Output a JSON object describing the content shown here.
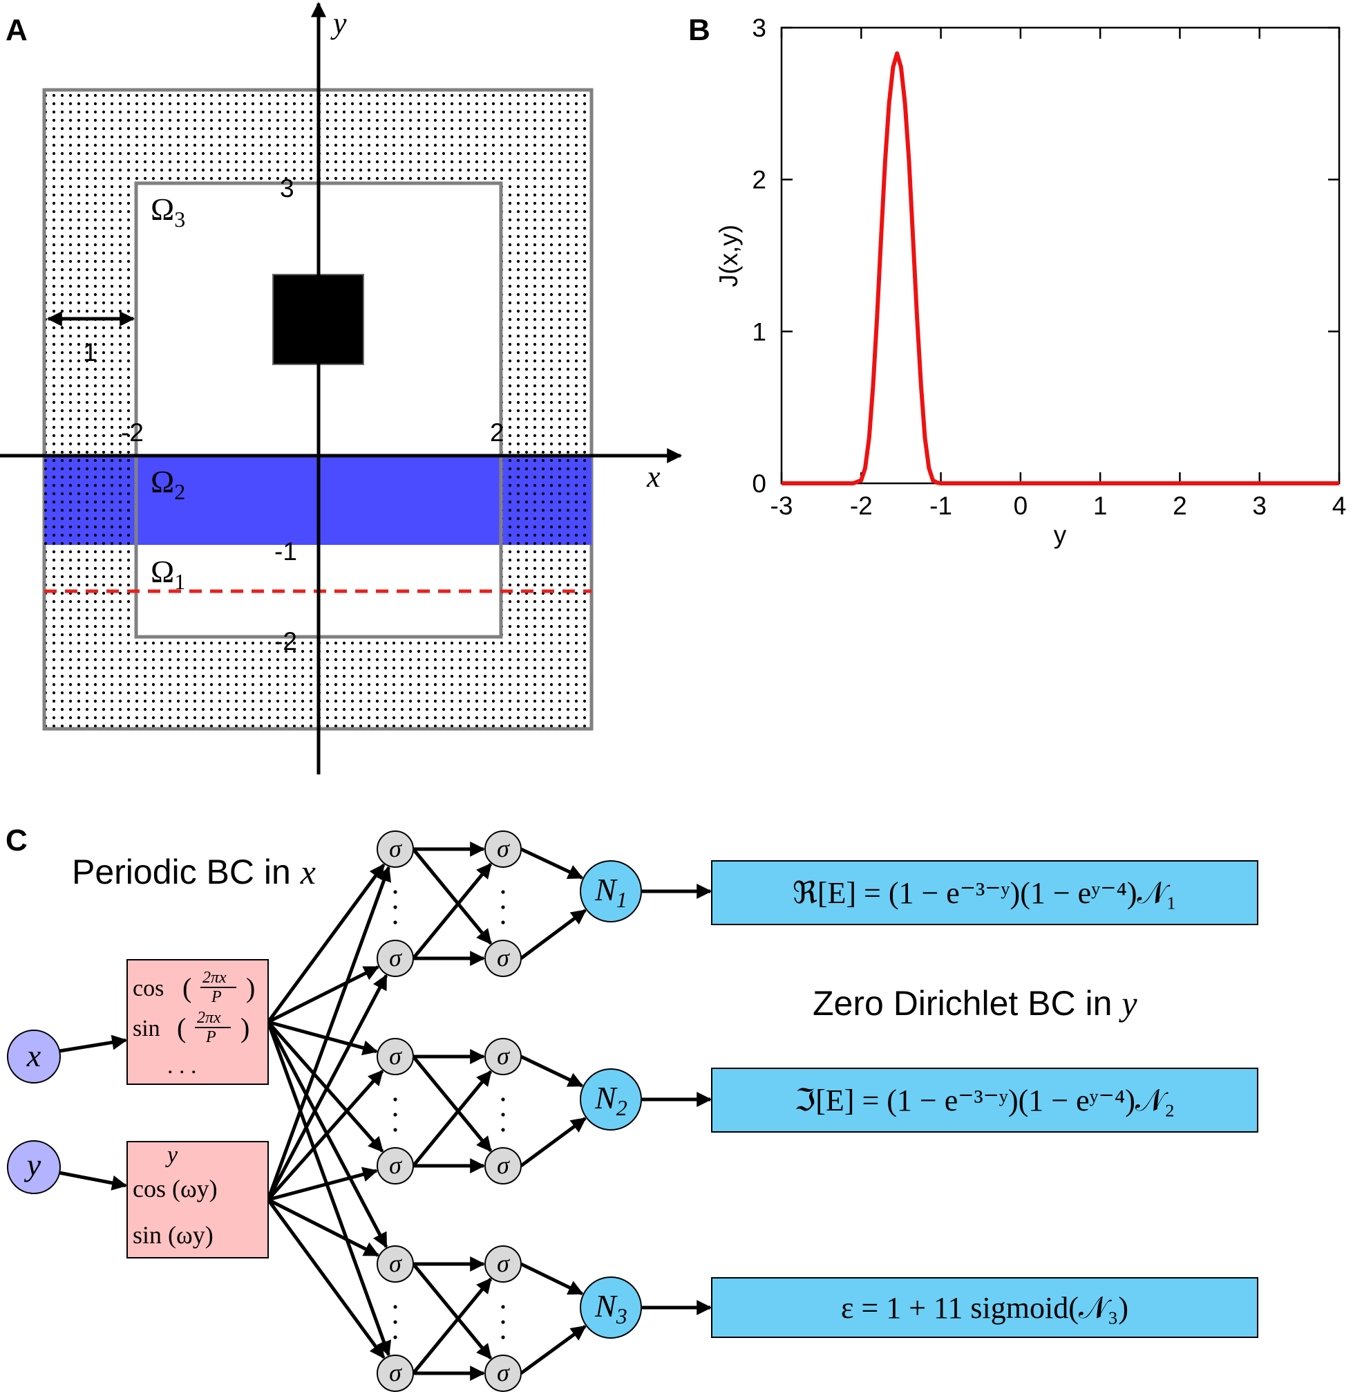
{
  "panels": {
    "a": "A",
    "b": "B",
    "c": "C"
  },
  "panel_a": {
    "axis_x": "x",
    "axis_y": "y",
    "ticks": {
      "y_top": "3",
      "y_m1": "-1",
      "y_m2": "-2",
      "x_m2": "-2",
      "x_p2": "2"
    },
    "width_label": "1",
    "omega_3": "Ω",
    "omega_3_sub": "3",
    "omega_2": "Ω",
    "omega_2_sub": "2",
    "omega_1": "Ω",
    "omega_1_sub": "1",
    "colors": {
      "band": "#4b4bff",
      "source": "#000000",
      "pml_border": "#808080",
      "dashed": "#e8201c"
    }
  },
  "panel_c": {
    "periodic_label": "Periodic BC in ",
    "periodic_var": "x",
    "dirichlet_label": "Zero Dirichlet BC in ",
    "dirichlet_var": "y",
    "input_x": "x",
    "input_y": "y",
    "feat_x": [
      "cos (2πx/P)",
      "sin (2πx/P)",
      ". . ."
    ],
    "feat_y": [
      "y",
      "cos (ωy)",
      "sin (ωy)"
    ],
    "frac_num": "2πx",
    "frac_den": "P",
    "neuron": "σ",
    "n1": "N",
    "n1_sub": "1",
    "n2": "N",
    "n2_sub": "2",
    "n3": "N",
    "n3_sub": "3",
    "out1": "ℜ[E] = (1 − e⁻³⁻ʸ)(1 − eʸ⁻⁴)𝒩₁",
    "out2": "ℑ[E] = (1 − e⁻³⁻ʸ)(1 − eʸ⁻⁴)𝒩₂",
    "out3": "ε = 1 + 11 sigmoid(𝒩₃)",
    "colors": {
      "input": "#b3b3ff",
      "feature": "#ffc2c2",
      "sigma": "#d9d9d9",
      "nn_out": "#6dcff6"
    }
  },
  "chart_data": {
    "type": "line",
    "title": "",
    "xlabel": "y",
    "ylabel": "J(x,y)",
    "xlim": [
      -3,
      4
    ],
    "ylim": [
      0,
      3
    ],
    "xticks": [
      "-3",
      "-2",
      "-1",
      "0",
      "1",
      "2",
      "3",
      "4"
    ],
    "yticks": [
      "0",
      "1",
      "2",
      "3"
    ],
    "line_color": "#ee1111",
    "series": [
      {
        "x": [
          -3,
          -2.5,
          -2.1,
          -2.0,
          -1.95,
          -1.9,
          -1.85,
          -1.8,
          -1.75,
          -1.7,
          -1.65,
          -1.6,
          -1.55,
          -1.5,
          -1.45,
          -1.4,
          -1.35,
          -1.3,
          -1.25,
          -1.2,
          -1.15,
          -1.1,
          -1.05,
          -1.0,
          -0.9,
          0,
          1,
          2,
          3,
          4
        ],
        "y": [
          0,
          0,
          0,
          0.02,
          0.1,
          0.3,
          0.65,
          1.1,
          1.62,
          2.12,
          2.5,
          2.74,
          2.83,
          2.74,
          2.5,
          2.12,
          1.62,
          1.1,
          0.65,
          0.3,
          0.1,
          0.02,
          0.005,
          0,
          0,
          0,
          0,
          0,
          0,
          0
        ]
      }
    ]
  }
}
